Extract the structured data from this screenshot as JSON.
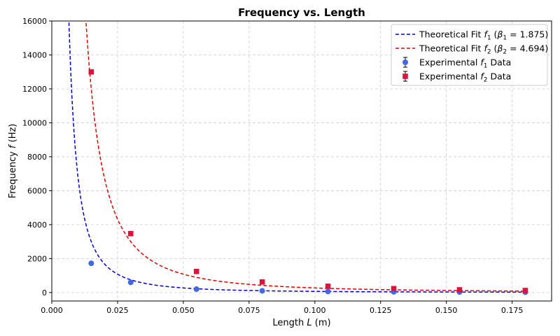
{
  "chart_data": {
    "type": "scatter",
    "title": "Frequency vs. Length",
    "xlabel": "Length L (m)",
    "ylabel": "Frequency f (Hz)",
    "xlim": [
      0.0,
      0.19
    ],
    "ylim": [
      -500,
      16000
    ],
    "x_ticks": [
      0.0,
      0.025,
      0.05,
      0.075,
      0.1,
      0.125,
      0.15,
      0.175
    ],
    "x_tick_labels": [
      "0.000",
      "0.025",
      "0.050",
      "0.075",
      "0.100",
      "0.125",
      "0.150",
      "0.175"
    ],
    "y_ticks": [
      0,
      2000,
      4000,
      6000,
      8000,
      10000,
      12000,
      14000,
      16000
    ],
    "y_tick_labels": [
      "0",
      "2000",
      "4000",
      "6000",
      "8000",
      "10000",
      "12000",
      "14000",
      "16000"
    ],
    "grid": true,
    "legend_position": "top-right",
    "fits": [
      {
        "name": "Theoretical Fit f1 (β1 = 1.875)",
        "label_parts": [
          "Theoretical Fit ",
          "f",
          "1",
          " (",
          "β",
          "1",
          " = 1.875)"
        ],
        "coefficient": 0.675,
        "color": "#0000cc",
        "style": "dashed"
      },
      {
        "name": "Theoretical Fit f2 (β2 = 4.694)",
        "label_parts": [
          "Theoretical Fit ",
          "f",
          "2",
          " (",
          "β",
          "2",
          " = 4.694)"
        ],
        "coefficient": 2.7,
        "color": "#dd0000",
        "style": "dashed"
      }
    ],
    "series": [
      {
        "name": "Experimental f1 Data",
        "label_parts": [
          "Experimental ",
          "f",
          "1",
          " Data"
        ],
        "marker": "circle",
        "color": "#4169e1",
        "x": [
          0.015,
          0.03,
          0.055,
          0.08,
          0.105,
          0.13,
          0.155,
          0.18
        ],
        "y": [
          1720,
          600,
          200,
          100,
          60,
          40,
          30,
          20
        ],
        "yerr": [
          60,
          40,
          20,
          10,
          5,
          5,
          5,
          5
        ]
      },
      {
        "name": "Experimental f2 Data",
        "label_parts": [
          "Experimental ",
          "f",
          "2",
          " Data"
        ],
        "marker": "square",
        "color": "#dc143c",
        "x": [
          0.015,
          0.03,
          0.055,
          0.08,
          0.105,
          0.13,
          0.155,
          0.18
        ],
        "y": [
          13000,
          3470,
          1240,
          620,
          370,
          230,
          160,
          120
        ],
        "yerr": [
          100,
          100,
          80,
          60,
          40,
          30,
          30,
          20
        ]
      }
    ]
  }
}
